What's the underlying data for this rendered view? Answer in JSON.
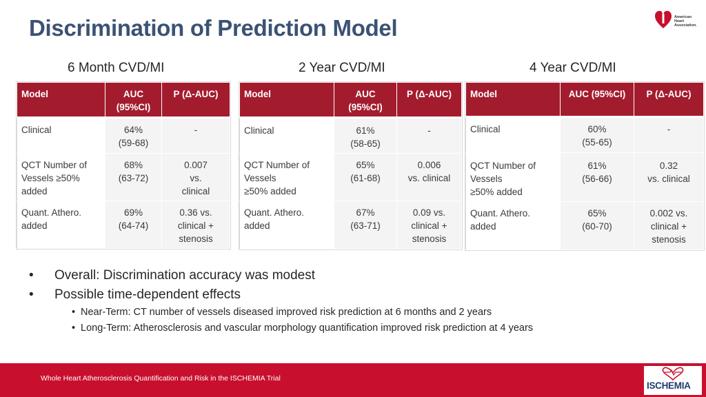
{
  "title": "Discrimination of Prediction Model",
  "logo": {
    "name": "heart-torch-icon",
    "text_lines": [
      "American",
      "Heart",
      "Association."
    ]
  },
  "sections": [
    {
      "heading": "6 Month CVD/MI"
    },
    {
      "heading": "2 Year CVD/MI"
    },
    {
      "heading": "4 Year CVD/MI"
    }
  ],
  "tables": [
    {
      "headers": [
        "Model",
        "AUC\n(95%CI)",
        "P (Δ-AUC)"
      ],
      "rows": [
        [
          "Clinical",
          "64%\n(59-68)",
          "-"
        ],
        [
          "QCT Number of\nVessels ≥50%\nadded",
          "68%\n(63-72)",
          "0.007\nvs.\nclinical"
        ],
        [
          "Quant. Athero.\nadded",
          "69%\n(64-74)",
          "0.36 vs.\nclinical +\nstenosis"
        ]
      ]
    },
    {
      "headers": [
        "Model",
        "AUC\n(95%CI)",
        "P (Δ-AUC)"
      ],
      "rows": [
        [
          "Clinical",
          "61%\n(58-65)",
          "-"
        ],
        [
          "QCT Number of\nVessels\n≥50% added",
          "65%\n(61-68)",
          "0.006\nvs. clinical"
        ],
        [
          "Quant. Athero.\nadded",
          "67%\n(63-71)",
          "0.09 vs.\nclinical +\nstenosis"
        ]
      ]
    },
    {
      "headers": [
        "Model",
        "AUC (95%CI)",
        "P (Δ-AUC)"
      ],
      "rows": [
        [
          "Clinical",
          "60%\n(55-65)",
          "-"
        ],
        [
          "QCT Number of\nVessels\n≥50% added",
          "61%\n(56-66)",
          "0.32\nvs. clinical"
        ],
        [
          "Quant. Athero.\nadded",
          "65%\n(60-70)",
          "0.002 vs.\nclinical +\nstenosis"
        ]
      ]
    }
  ],
  "bullets": [
    {
      "dot": "•",
      "text": "Overall: Discrimination accuracy was modest"
    },
    {
      "dot": "•",
      "text": "Possible time-dependent effects"
    }
  ],
  "sub_bullets": [
    {
      "dot": "•",
      "text": "Near-Term: CT number of vessels diseased improved risk prediction at 6 months and 2 years"
    },
    {
      "dot": "•",
      "text": "Long-Term: Atherosclerosis and vascular morphology quantification improved risk prediction at 4 years"
    }
  ],
  "footer": {
    "text": "Whole Heart Atherosclerosis Quantification and Risk in the ISCHEMIA Trial",
    "logo_text": "ISCHEMIA"
  },
  "colors": {
    "title": "#3b5273",
    "header_bg": "#a31c2e",
    "footer_bg": "#c8102e",
    "logo_red": "#c8102e"
  }
}
